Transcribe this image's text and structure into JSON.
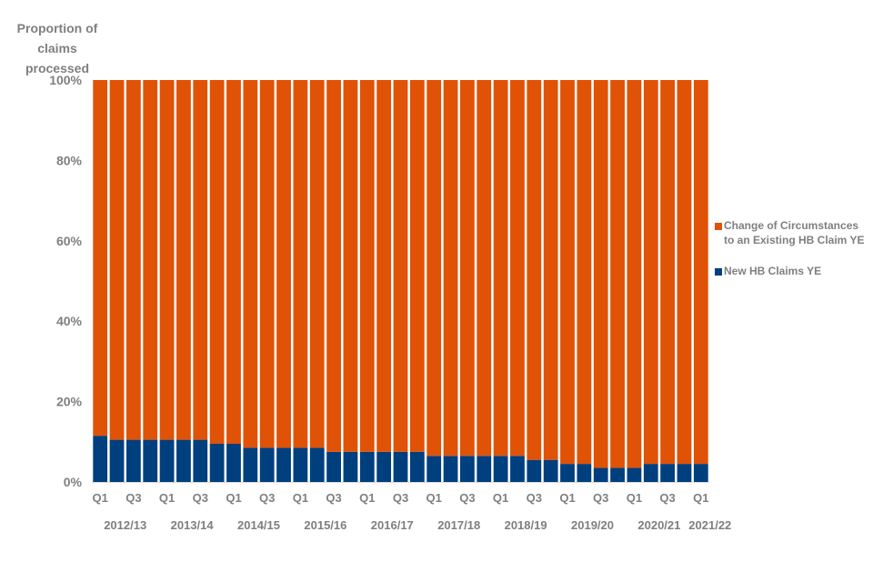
{
  "chart_data": {
    "type": "bar",
    "stacked": true,
    "ylabel": [
      "Proportion of",
      "claims",
      "processed"
    ],
    "ylim": [
      0,
      100
    ],
    "ytick_values": [
      0,
      20,
      40,
      60,
      80,
      100
    ],
    "ytick_labels": [
      "0%",
      "20%",
      "40%",
      "60%",
      "80%",
      "100%"
    ],
    "quarter_labels": [
      "Q1",
      "",
      "Q3",
      "",
      "Q1",
      "",
      "Q3",
      "",
      "Q1",
      "",
      "Q3",
      "",
      "Q1",
      "",
      "Q3",
      "",
      "Q1",
      "",
      "Q3",
      "",
      "Q1",
      "",
      "Q3",
      "",
      "Q1",
      "",
      "Q3",
      "",
      "Q1",
      "",
      "Q3",
      "",
      "Q1",
      "",
      "Q3",
      "",
      "Q1"
    ],
    "year_labels": [
      "2012/13",
      "2013/14",
      "2014/15",
      "2015/16",
      "2016/17",
      "2017/18",
      "2018/19",
      "2019/20",
      "2020/21",
      "2021/22"
    ],
    "series": [
      {
        "name": "New HB Claims YE",
        "color": "#003f7d",
        "values": [
          11.5,
          10.5,
          10.5,
          10.5,
          10.5,
          10.5,
          10.5,
          9.5,
          9.5,
          8.5,
          8.5,
          8.5,
          8.5,
          8.5,
          7.5,
          7.5,
          7.5,
          7.5,
          7.5,
          7.5,
          6.5,
          6.5,
          6.5,
          6.5,
          6.5,
          6.5,
          5.5,
          5.5,
          4.5,
          4.5,
          3.5,
          3.5,
          3.5,
          4.5,
          4.5,
          4.5,
          4.5
        ]
      },
      {
        "name": "Change of Circumstances to an Existing HB Claim YE",
        "color": "#e05206",
        "values": [
          88.5,
          89.5,
          89.5,
          89.5,
          89.5,
          89.5,
          89.5,
          90.5,
          90.5,
          91.5,
          91.5,
          91.5,
          91.5,
          91.5,
          92.5,
          92.5,
          92.5,
          92.5,
          92.5,
          92.5,
          93.5,
          93.5,
          93.5,
          93.5,
          93.5,
          93.5,
          94.5,
          94.5,
          95.5,
          95.5,
          96.5,
          96.5,
          96.5,
          95.5,
          95.5,
          95.5,
          95.5
        ]
      }
    ],
    "legend": [
      {
        "label": "Change of Circumstances to an Existing HB Claim YE",
        "color": "#e05206"
      },
      {
        "label": "New HB Claims YE",
        "color": "#003f7d"
      }
    ]
  }
}
